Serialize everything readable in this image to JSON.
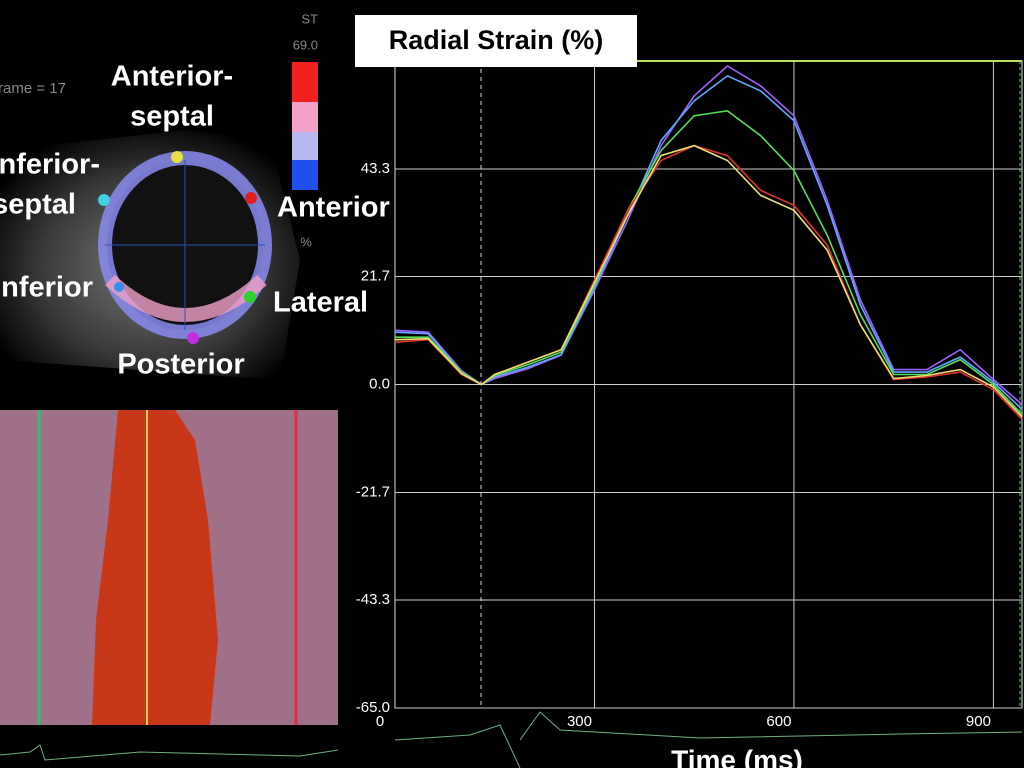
{
  "chart_data": {
    "type": "line",
    "title": "Radial Strain (%)",
    "x_label": "Time (ms)",
    "x": [
      0,
      50,
      100,
      130,
      150,
      200,
      250,
      300,
      350,
      400,
      450,
      500,
      550,
      600,
      650,
      700,
      750,
      800,
      850,
      900,
      943
    ],
    "series": [
      {
        "color": "#a060ff",
        "values": [
          10.9,
          10.5,
          2.8,
          0,
          1.2,
          3.2,
          5.9,
          19,
          33,
          48,
          58,
          64,
          60,
          54,
          37,
          17,
          3,
          3,
          7,
          1,
          -4
        ]
      },
      {
        "color": "#60a8ff",
        "values": [
          10.5,
          10.2,
          2.5,
          0,
          1.5,
          3.5,
          6,
          19.5,
          34,
          49,
          57,
          62,
          59,
          53,
          36,
          16,
          2.5,
          2.5,
          5.5,
          0.5,
          -5
        ]
      },
      {
        "color": "#55dd55",
        "values": [
          9.5,
          9.5,
          2.5,
          0,
          1.8,
          4,
          6.5,
          20,
          35,
          47,
          54,
          55,
          50,
          43,
          30,
          14,
          2,
          2,
          5,
          0,
          -6
        ]
      },
      {
        "color": "#e03030",
        "values": [
          8.5,
          9,
          2,
          0,
          2,
          4.5,
          7,
          21,
          35,
          45,
          48,
          46,
          39,
          36,
          28,
          12,
          1,
          1.5,
          2.5,
          -1,
          -7
        ]
      },
      {
        "color": "#e8e070",
        "values": [
          9,
          9.2,
          2.2,
          0,
          2,
          4.5,
          7,
          20.5,
          34,
          46,
          48,
          45,
          38,
          35,
          27,
          12,
          1.2,
          1.8,
          3,
          -0.5,
          -6.5
        ]
      }
    ],
    "xlim": [
      0,
      943
    ],
    "ylim": [
      -65,
      65
    ],
    "xticks": [
      0,
      300,
      600,
      900
    ],
    "yticks": [
      {
        "value": -65,
        "label": "-65.0"
      },
      -43.3,
      -21.7,
      {
        "value": 0,
        "label": "0.0"
      },
      21.7,
      43.3
    ],
    "grid": true
  },
  "panel": {
    "frame": "rame = 17",
    "labels": [
      "Anterior-",
      "septal",
      "Inferior-",
      "septal",
      "Anterior",
      "Inferior",
      "Lateral",
      "Posterior"
    ],
    "colorbar": {
      "unit": "ST",
      "max": "69.0",
      "percent": "%"
    }
  }
}
